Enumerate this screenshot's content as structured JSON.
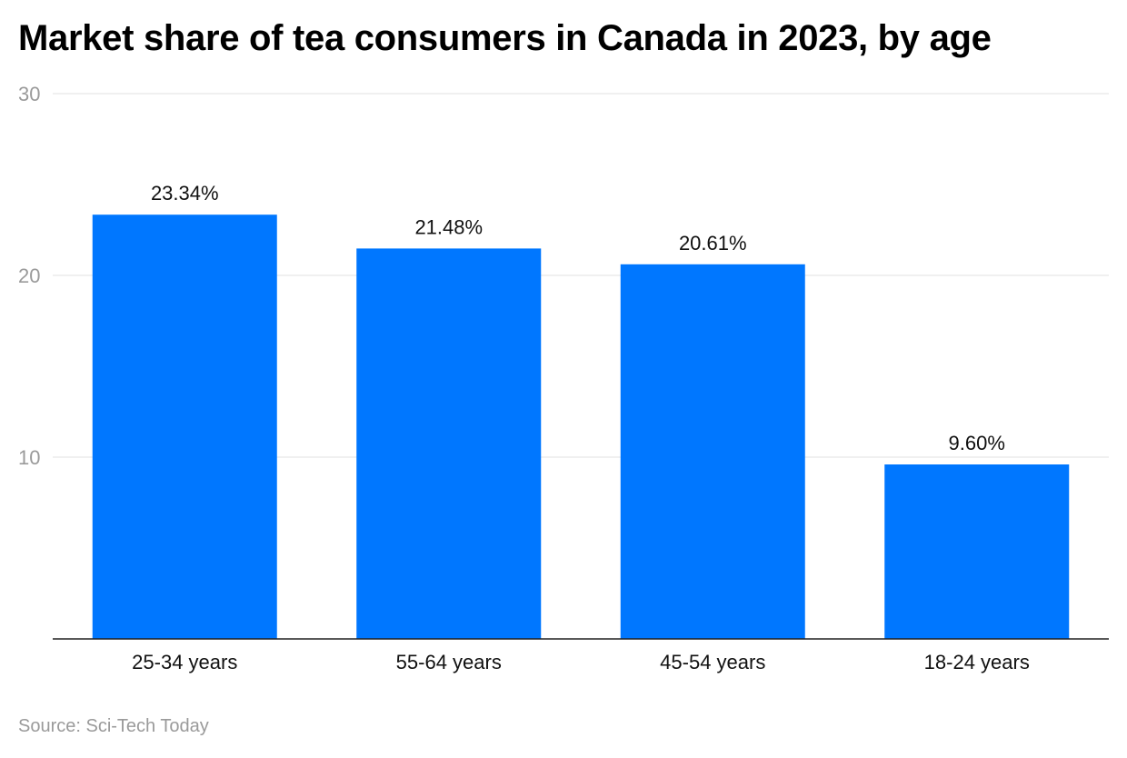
{
  "chart_data": {
    "type": "bar",
    "title": "Market share of tea consumers in Canada in 2023, by age",
    "categories": [
      "25-34 years",
      "55-64 years",
      "45-54 years",
      "18-24 years"
    ],
    "values": [
      23.34,
      21.48,
      20.61,
      9.6
    ],
    "data_labels": [
      "23.34%",
      "21.48%",
      "20.61%",
      "9.60%"
    ],
    "xlabel": "",
    "ylabel": "",
    "ylim": [
      0,
      30
    ],
    "yticks": [
      10,
      20,
      30
    ],
    "grid": true,
    "bar_color": "#0077FF",
    "source": "Source: Sci-Tech Today"
  }
}
